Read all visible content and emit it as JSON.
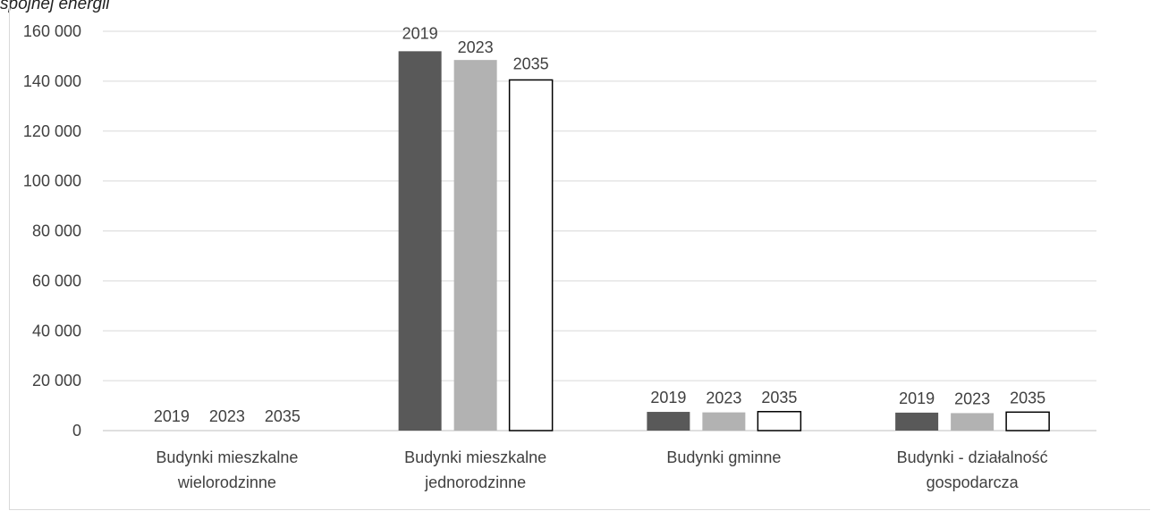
{
  "caption": "spójnej energii",
  "chart_data": {
    "type": "bar",
    "categories": [
      [
        "Budynki mieszkalne",
        "wielorodzinne"
      ],
      [
        "Budynki mieszkalne",
        "jednorodzinne"
      ],
      [
        "Budynki gminne"
      ],
      [
        "Budynki - działalność",
        "gospodarcza"
      ]
    ],
    "series": [
      {
        "label": "2019",
        "color": "#595959",
        "values": [
          0,
          152000,
          7500,
          7200
        ]
      },
      {
        "label": "2023",
        "color": "#b2b2b2",
        "values": [
          0,
          148500,
          7300,
          7000
        ]
      },
      {
        "label": "2035",
        "color": "#ffffff",
        "values": [
          0,
          140500,
          7600,
          7400
        ]
      }
    ],
    "ylim": [
      0,
      160000
    ],
    "yticks": [
      {
        "value": 0,
        "label": "0"
      },
      {
        "value": 20000,
        "label": "20 000"
      },
      {
        "value": 40000,
        "label": "40 000"
      },
      {
        "value": 60000,
        "label": "60 000"
      },
      {
        "value": 80000,
        "label": "80 000"
      },
      {
        "value": 100000,
        "label": "100 000"
      },
      {
        "value": 120000,
        "label": "120 000"
      },
      {
        "value": 140000,
        "label": "140 000"
      },
      {
        "value": 160000,
        "label": "160 000"
      }
    ],
    "grid": true,
    "legend": "none"
  }
}
